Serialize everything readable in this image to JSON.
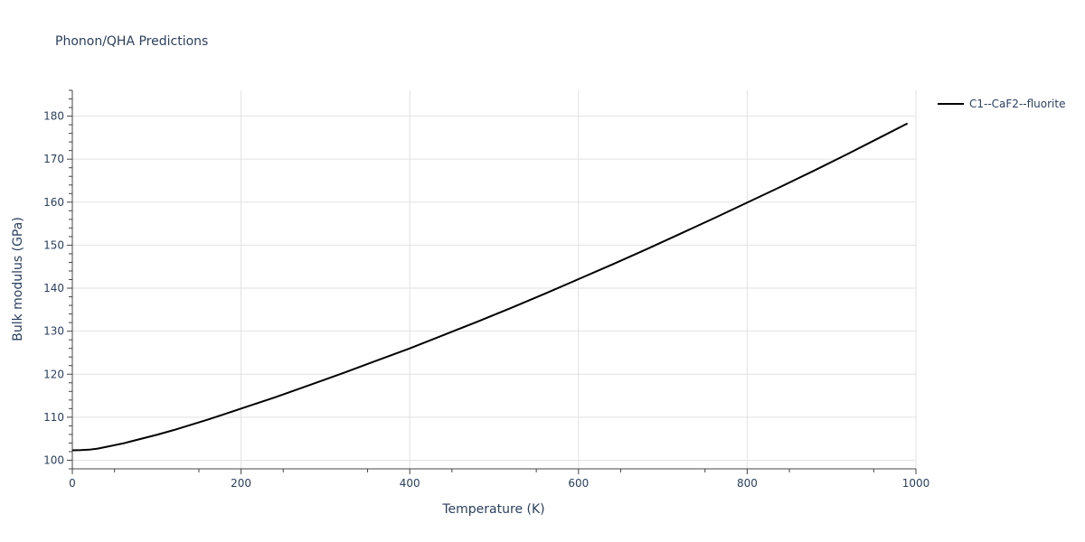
{
  "chart_data": {
    "type": "line",
    "title": "Phonon/QHA Predictions",
    "xlabel": "Temperature (K)",
    "ylabel": "Bulk modulus (GPa)",
    "xlim": [
      0,
      1000
    ],
    "ylim": [
      98,
      186
    ],
    "x_ticks": [
      0,
      200,
      400,
      600,
      800,
      1000
    ],
    "y_ticks": [
      100,
      110,
      120,
      130,
      140,
      150,
      160,
      170,
      180
    ],
    "grid": true,
    "legend_position": "top-right",
    "series": [
      {
        "name": "C1--CaF2--fluorite",
        "color": "#000000",
        "x": [
          0,
          10,
          20,
          30,
          40,
          50,
          60,
          70,
          80,
          100,
          120,
          140,
          160,
          180,
          200,
          240,
          280,
          320,
          360,
          400,
          440,
          480,
          520,
          560,
          600,
          640,
          680,
          720,
          760,
          800,
          840,
          880,
          920,
          960,
          990
        ],
        "y": [
          102.3,
          102.35,
          102.45,
          102.7,
          103.1,
          103.5,
          103.9,
          104.4,
          104.9,
          105.9,
          107.0,
          108.2,
          109.4,
          110.7,
          112.0,
          114.6,
          117.4,
          120.2,
          123.1,
          126.0,
          129.1,
          132.2,
          135.4,
          138.7,
          142.1,
          145.5,
          149.0,
          152.6,
          156.2,
          159.9,
          163.6,
          167.4,
          171.3,
          175.3,
          178.3
        ]
      }
    ]
  }
}
